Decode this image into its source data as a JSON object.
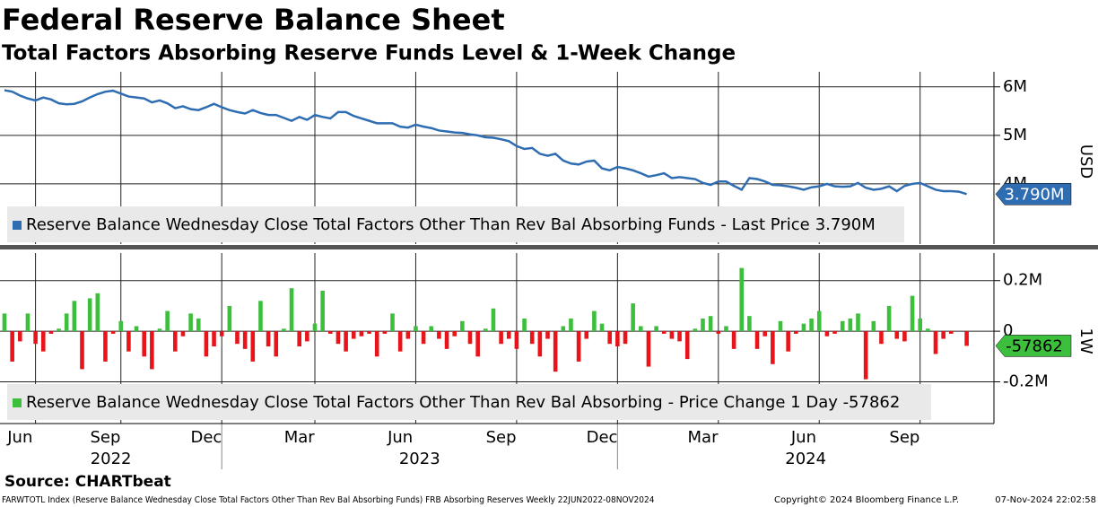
{
  "chart_data": [
    {
      "type": "line",
      "title": "Federal Reserve Balance Sheet",
      "subtitle": "Total Factors Absorbing Reserve Funds Level & 1-Week Change",
      "y_label": "USD",
      "color": "#2f6db3",
      "name": "Reserve Balance Wednesday Close Total Factors Other Than Rev Bal Absorbing Funds",
      "stat_label": "- Last Price",
      "last_price": {
        "value": 3.79,
        "label": "3.790M"
      },
      "ylim": [
        2.76,
        6.31
      ],
      "yticks": [
        {
          "value": 4,
          "label": "4M"
        },
        {
          "value": 5,
          "label": "5M"
        },
        {
          "value": 6,
          "label": "6M"
        }
      ],
      "grid": true,
      "values": [
        5.93,
        5.9,
        5.82,
        5.76,
        5.72,
        5.78,
        5.74,
        5.66,
        5.64,
        5.65,
        5.7,
        5.78,
        5.85,
        5.9,
        5.92,
        5.86,
        5.8,
        5.78,
        5.76,
        5.68,
        5.72,
        5.66,
        5.56,
        5.6,
        5.54,
        5.52,
        5.58,
        5.65,
        5.58,
        5.52,
        5.48,
        5.45,
        5.52,
        5.46,
        5.42,
        5.42,
        5.36,
        5.3,
        5.38,
        5.32,
        5.42,
        5.38,
        5.35,
        5.48,
        5.48,
        5.4,
        5.35,
        5.3,
        5.25,
        5.25,
        5.25,
        5.18,
        5.16,
        5.22,
        5.18,
        5.15,
        5.1,
        5.08,
        5.06,
        5.05,
        5.02,
        5.0,
        4.96,
        4.95,
        4.92,
        4.88,
        4.78,
        4.72,
        4.74,
        4.62,
        4.58,
        4.62,
        4.48,
        4.42,
        4.4,
        4.46,
        4.48,
        4.32,
        4.28,
        4.35,
        4.32,
        4.28,
        4.22,
        4.15,
        4.18,
        4.22,
        4.12,
        4.14,
        4.12,
        4.1,
        4.02,
        3.98,
        4.05,
        4.05,
        3.96,
        3.88,
        4.12,
        4.1,
        4.05,
        3.98,
        3.97,
        3.95,
        3.92,
        3.88,
        3.93,
        3.95,
        4.0,
        3.95,
        3.94,
        3.95,
        4.02,
        3.92,
        3.88,
        3.9,
        3.95,
        3.85,
        3.96,
        4.0,
        4.02,
        3.95,
        3.88,
        3.85,
        3.85,
        3.84,
        3.79
      ]
    },
    {
      "type": "bar",
      "y_label": "1W",
      "pos_color": "#3cbf3c",
      "neg_color": "#e8141a",
      "name": "Reserve Balance Wednesday Close Total Factors Other Than Rev Bal Absorbing",
      "stat_label": "- Price Change 1 Day",
      "last_change": {
        "value": -0.057862,
        "label": "-57862"
      },
      "ylim": [
        -0.365,
        0.309
      ],
      "yticks": [
        {
          "value": -0.2,
          "label": "-0.2M"
        },
        0,
        {
          "value": 0.2,
          "label": "0.2M"
        }
      ],
      "grid": true,
      "categories": [
        null,
        null,
        "Jun",
        null,
        null,
        null,
        null,
        null,
        null,
        null,
        null,
        null,
        null,
        "Sep",
        null,
        null,
        null,
        null,
        null,
        null,
        null,
        null,
        null,
        null,
        null,
        null,
        "Dec",
        null,
        null,
        null,
        null,
        null,
        null,
        null,
        null,
        null,
        null,
        null,
        "Mar",
        null,
        null,
        null,
        null,
        null,
        null,
        null,
        null,
        null,
        null,
        null,
        null,
        "Jun",
        null,
        null,
        null,
        null,
        null,
        null,
        null,
        null,
        null,
        null,
        null,
        null,
        "Sep",
        null,
        null,
        null,
        null,
        null,
        null,
        null,
        null,
        null,
        null,
        null,
        null,
        "Dec",
        null,
        null,
        null,
        null,
        null,
        null,
        null,
        null,
        null,
        null,
        null,
        null,
        "Mar",
        null,
        null,
        null,
        null,
        null,
        null,
        null,
        null,
        null,
        null,
        null,
        null,
        "Jun",
        null,
        null,
        null,
        null,
        null,
        null,
        null,
        null,
        null,
        null,
        null,
        null,
        "Sep",
        null,
        null,
        null,
        null,
        null,
        null,
        null,
        null
      ],
      "years": [
        "2022",
        "2023",
        "2024"
      ],
      "values": [
        0.07,
        -0.12,
        -0.04,
        0.07,
        -0.05,
        -0.08,
        -0.01,
        0.01,
        0.07,
        0.12,
        -0.15,
        0.13,
        0.15,
        -0.12,
        -0.01,
        0.04,
        -0.08,
        0.02,
        -0.1,
        -0.15,
        0.01,
        0.08,
        -0.08,
        -0.02,
        0.07,
        0.05,
        -0.1,
        -0.06,
        -0.02,
        0.1,
        -0.05,
        -0.07,
        -0.12,
        0.12,
        -0.06,
        -0.1,
        0.01,
        0.17,
        -0.06,
        -0.04,
        0.03,
        0.16,
        -0.01,
        -0.05,
        -0.08,
        -0.03,
        -0.02,
        -0.01,
        -0.1,
        -0.01,
        0.07,
        -0.08,
        -0.03,
        0.02,
        -0.05,
        0.02,
        -0.03,
        -0.07,
        -0.02,
        0.04,
        -0.05,
        -0.1,
        0.01,
        0.09,
        -0.05,
        -0.03,
        -0.07,
        0.05,
        -0.05,
        -0.1,
        -0.03,
        -0.16,
        0.02,
        0.05,
        -0.12,
        -0.03,
        0.08,
        0.03,
        -0.05,
        -0.06,
        -0.05,
        0.11,
        0.02,
        -0.14,
        0.02,
        -0.01,
        -0.03,
        -0.04,
        -0.11,
        0.01,
        0.05,
        0.06,
        -0.01,
        0.02,
        -0.07,
        0.25,
        0.06,
        -0.07,
        -0.02,
        -0.13,
        0.04,
        -0.08,
        -0.01,
        0.03,
        0.05,
        0.08,
        -0.02,
        -0.01,
        0.04,
        0.05,
        0.07,
        -0.19,
        0.04,
        -0.05,
        0.1,
        -0.03,
        -0.04,
        0.14,
        0.05,
        0.01,
        -0.09,
        -0.03,
        -0.01,
        0.0,
        -0.057862
      ]
    }
  ],
  "source": "Source: CHARTbeat",
  "footer": {
    "note": "FARWTOTL Index (Reserve Balance Wednesday Close Total Factors Other Than Rev Bal Absorbing Funds) FRB Absorbing Reserves  Weekly 22JUN2022-08NOV2024",
    "copyright": "Copyright© 2024 Bloomberg Finance L.P.",
    "timestamp": "07-Nov-2024 22:02:58"
  }
}
